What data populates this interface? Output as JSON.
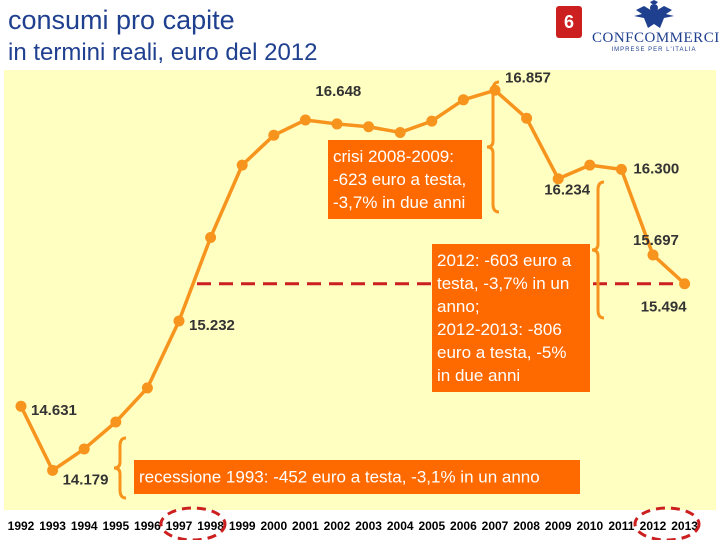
{
  "header": {
    "title": "consumi pro capite",
    "subtitle": "in termini reali, euro del 2012",
    "page_number": "6"
  },
  "logo": {
    "name": "CONFCOMMERCIO",
    "tagline": "IMPRESE PER L'ITALIA",
    "emblem_icon": "eagle-icon"
  },
  "colors": {
    "plot_bg": "#ffffc2",
    "line": "#f7941d",
    "annotation_bg": "#ff6a00",
    "reference_line": "#cc1f1f",
    "highlight_circle": "#cc1f1f",
    "title": "#1f3f8f"
  },
  "chart_data": {
    "type": "line",
    "title": "consumi pro capite",
    "subtitle": "in termini reali, euro del 2012",
    "x": [
      "1992",
      "1993",
      "1994",
      "1995",
      "1996",
      "1997",
      "1998",
      "1999",
      "2000",
      "2001",
      "2002",
      "2003",
      "2004",
      "2005",
      "2006",
      "2007",
      "2008",
      "2009",
      "2010",
      "2011",
      "2012",
      "2013"
    ],
    "series": [
      {
        "values": [
          14631,
          14179,
          14330,
          14520,
          14760,
          15232,
          15820,
          16330,
          16540,
          16648,
          16620,
          16600,
          16560,
          16640,
          16790,
          16857,
          16660,
          16234,
          16330,
          16300,
          15697,
          15494
        ]
      }
    ],
    "ylim": [
      13900,
      17000
    ],
    "grid": false,
    "data_labels": [
      {
        "year": "1992",
        "text": "14.631"
      },
      {
        "year": "1993",
        "text": "14.179"
      },
      {
        "year": "1997",
        "text": "15.232"
      },
      {
        "year": "2001",
        "text": "16.648"
      },
      {
        "year": "2007",
        "text": "16.857"
      },
      {
        "year": "2009",
        "text": "16.234"
      },
      {
        "year": "2011",
        "text": "16.300"
      },
      {
        "year": "2012",
        "text": "15.697"
      },
      {
        "year": "2013",
        "text": "15.494"
      }
    ],
    "reference_line": {
      "value": 15494,
      "from": "1997",
      "to": "2013"
    },
    "highlighted_years": [
      "1997",
      "2012"
    ],
    "annotations": [
      {
        "id": "crisi",
        "lines": [
          "crisi 2008-2009:",
          "-623 euro a testa,",
          "-3,7% in due anni"
        ]
      },
      {
        "id": "recent",
        "lines": [
          "2012: -603 euro a",
          "testa, -3,7% in un",
          "anno;",
          "2012-2013: -806",
          "euro a testa, -5%",
          "in due anni"
        ]
      },
      {
        "id": "recessione",
        "lines": [
          "recessione 1993: -452 euro a testa, -3,1% in un anno"
        ]
      }
    ]
  }
}
